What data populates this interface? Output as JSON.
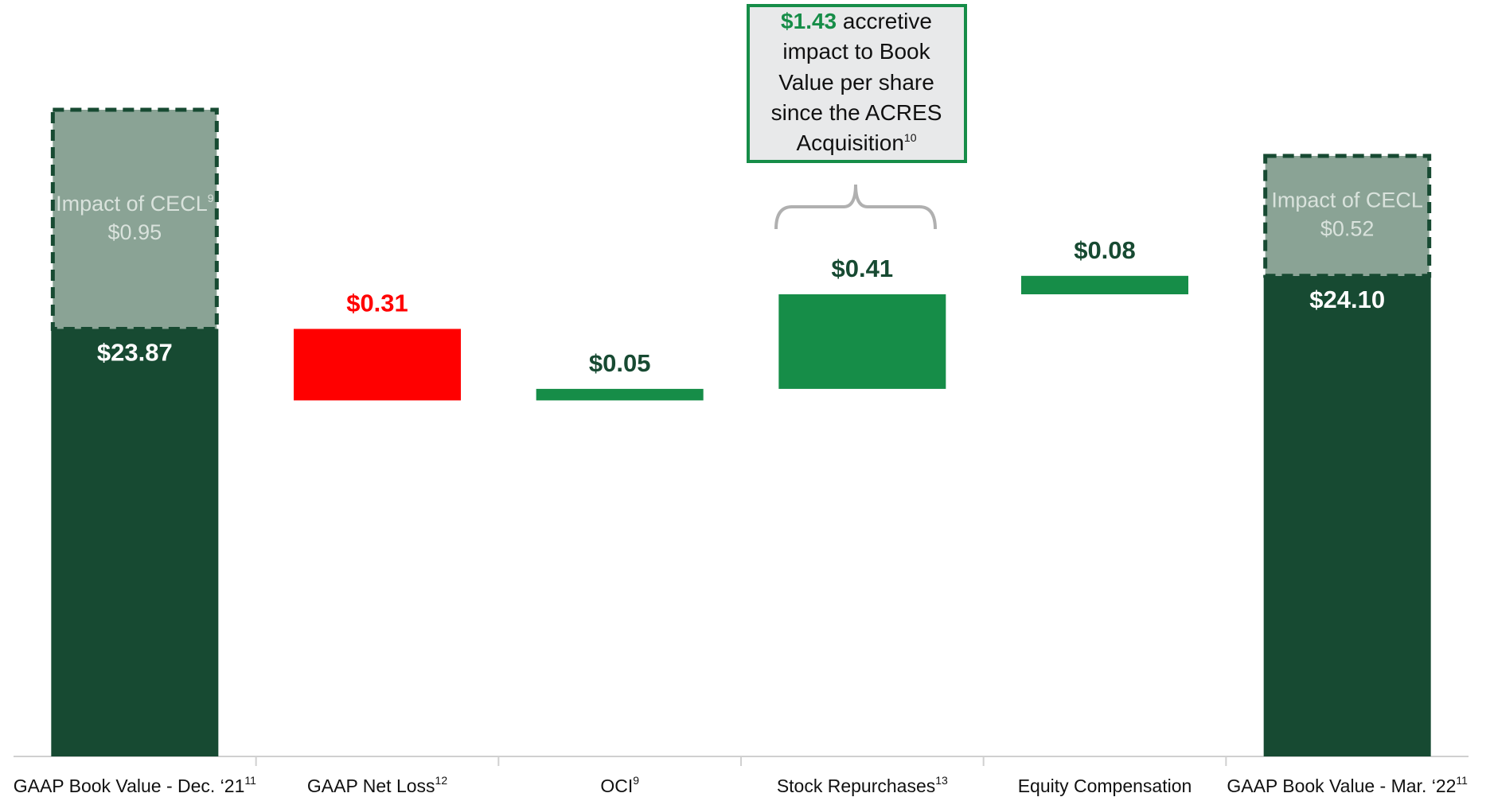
{
  "chart_data": {
    "type": "waterfall",
    "categories": [
      "GAAP Book Value - Dec. ‘21",
      "GAAP Net Loss",
      "OCI",
      "Stock Repurchases",
      "Equity Compensation",
      "GAAP Book Value - Mar. ‘22"
    ],
    "category_footnotes": [
      "11",
      "12",
      "9",
      "13",
      null,
      "11"
    ],
    "measures": [
      "total",
      "relative",
      "relative",
      "relative",
      "relative",
      "total"
    ],
    "values": [
      23.87,
      -0.31,
      0.05,
      0.41,
      0.08,
      24.1
    ],
    "value_labels": [
      "$23.87",
      "$0.31",
      "$0.05",
      "$0.41",
      "$0.08",
      "$24.10"
    ],
    "colors": {
      "total": "#174a32",
      "increase": "#168d48",
      "decrease": "#ff0000",
      "increase_label": "#174a32"
    },
    "cecl": {
      "name": "Impact of CECL",
      "color": "#8aa395",
      "values": [
        0.95,
        null,
        null,
        null,
        null,
        0.52
      ],
      "value_labels": [
        "$0.95",
        null,
        null,
        null,
        null,
        "$0.52"
      ],
      "footnotes": [
        "9",
        null,
        null,
        null,
        null,
        null
      ]
    },
    "annotation": {
      "value": 1.43,
      "value_label": "$1.43",
      "lines": [
        "accretive",
        "impact to Book",
        "Value per share",
        "since the ACRES",
        "Acquisition"
      ],
      "footnote": "10"
    }
  }
}
